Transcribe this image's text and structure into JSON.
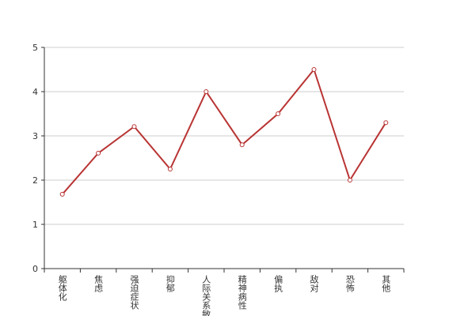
{
  "chart_data": {
    "type": "line",
    "categories": [
      "躯体化",
      "焦虑",
      "强迫症状",
      "抑郁",
      "人际关系敏感",
      "精神病性",
      "偏执",
      "敌对",
      "恐怖",
      "其他"
    ],
    "series": [
      {
        "color": "#b93434",
        "values": [
          1.68,
          2.61,
          3.21,
          2.25,
          4.0,
          2.8,
          3.5,
          4.5,
          2.0,
          3.3
        ]
      }
    ],
    "ylim": [
      0,
      5
    ],
    "yticks": [
      0,
      1,
      2,
      3,
      4,
      5
    ],
    "grid": true
  }
}
